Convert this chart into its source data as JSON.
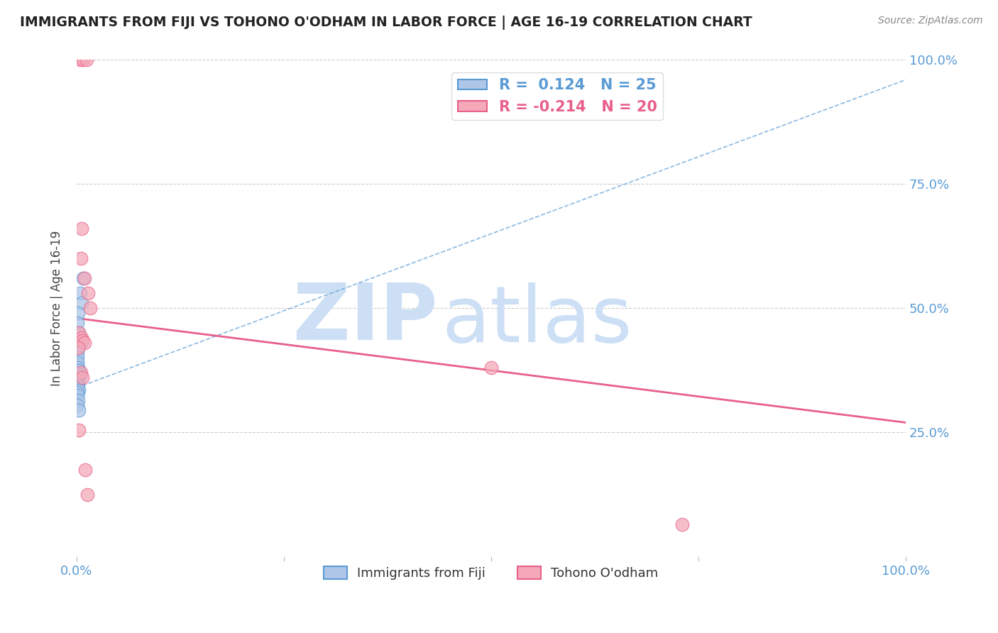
{
  "title": "IMMIGRANTS FROM FIJI VS TOHONO O'ODHAM IN LABOR FORCE | AGE 16-19 CORRELATION CHART",
  "source": "Source: ZipAtlas.com",
  "ylabel": "In Labor Force | Age 16-19",
  "xlim": [
    0.0,
    1.0
  ],
  "ylim": [
    0.0,
    1.0
  ],
  "fiji_R": 0.124,
  "fiji_N": 25,
  "tohono_R": -0.214,
  "tohono_N": 20,
  "fiji_color": "#aec6e8",
  "tohono_color": "#f4a8b8",
  "fiji_trend_color": "#5a9bd4",
  "tohono_trend_color": "#e8608a",
  "watermark_zip": "ZIP",
  "watermark_atlas": "atlas",
  "watermark_color": "#ccdff5",
  "grid_color": "#cccccc",
  "background_color": "#ffffff",
  "title_color": "#222222",
  "label_color": "#5a9bd4",
  "legend_fiji_label": "R =  0.124   N = 25",
  "legend_tohono_label": "R = -0.214   N = 20",
  "fiji_trend_x0": 0.0,
  "fiji_trend_y0": 0.34,
  "fiji_trend_x1": 1.0,
  "fiji_trend_y1": 0.96,
  "tohono_trend_x0": 0.0,
  "tohono_trend_y0": 0.48,
  "tohono_trend_x1": 1.0,
  "tohono_trend_y1": 0.27,
  "fiji_points_x": [
    0.008,
    0.004,
    0.006,
    0.002,
    0.001,
    0.003,
    0.005,
    0.002,
    0.001,
    0.0008,
    0.001,
    0.002,
    0.003,
    0.004,
    0.001,
    0.002,
    0.0008,
    0.001,
    0.002,
    0.003,
    0.001,
    0.0006,
    0.002,
    0.001,
    0.003
  ],
  "fiji_points_y": [
    0.56,
    0.53,
    0.51,
    0.49,
    0.47,
    0.45,
    0.43,
    0.42,
    0.41,
    0.4,
    0.39,
    0.38,
    0.375,
    0.365,
    0.36,
    0.355,
    0.35,
    0.345,
    0.34,
    0.335,
    0.33,
    0.325,
    0.315,
    0.305,
    0.295
  ],
  "tohono_points_x": [
    0.004,
    0.008,
    0.012,
    0.006,
    0.005,
    0.009,
    0.5,
    0.014,
    0.003,
    0.006,
    0.007,
    0.009,
    0.002,
    0.01,
    0.013,
    0.73,
    0.016,
    0.005,
    0.007,
    0.003
  ],
  "tohono_points_y": [
    1.0,
    1.0,
    1.0,
    0.66,
    0.6,
    0.56,
    0.38,
    0.53,
    0.45,
    0.44,
    0.435,
    0.43,
    0.42,
    0.175,
    0.125,
    0.065,
    0.5,
    0.37,
    0.36,
    0.255
  ],
  "ytick_labels_right": [
    "100.0%",
    "75.0%",
    "50.0%",
    "25.0%"
  ],
  "ytick_positions_right": [
    1.0,
    0.75,
    0.5,
    0.25
  ]
}
